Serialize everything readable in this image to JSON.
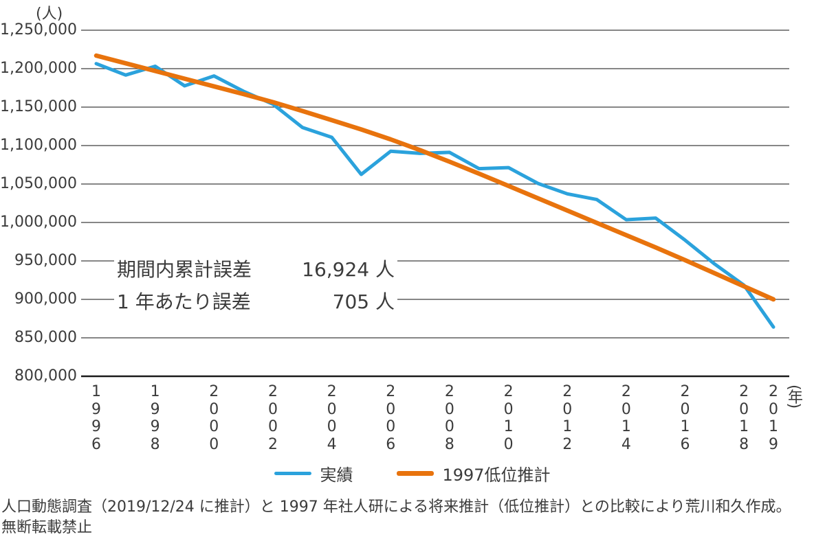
{
  "chart_data": {
    "type": "line",
    "y_unit_label": "(人)",
    "x_unit_label": "(年)",
    "ylim": [
      800000,
      1250000
    ],
    "ytick_step": 50000,
    "ytick_labels": [
      "1,250,000",
      "1,200,000",
      "1,150,000",
      "1,100,000",
      "1,050,000",
      "1,000,000",
      "950,000",
      "900,000",
      "850,000",
      "800,000"
    ],
    "x_tick_labels": [
      "1996",
      "1998",
      "2000",
      "2002",
      "2004",
      "2006",
      "2008",
      "2010",
      "2012",
      "2014",
      "2016",
      "2018",
      "2019"
    ],
    "years": [
      1996,
      1997,
      1998,
      1999,
      2000,
      2001,
      2002,
      2003,
      2004,
      2005,
      2006,
      2007,
      2008,
      2009,
      2010,
      2011,
      2012,
      2013,
      2014,
      2015,
      2016,
      2017,
      2018,
      2019
    ],
    "grid": true,
    "legend_position": "bottom",
    "series": [
      {
        "id": "actual-line",
        "name": "実績",
        "color": "#2BA2DC",
        "width": 5,
        "values": [
          1206555,
          1191665,
          1203147,
          1177669,
          1190547,
          1170662,
          1153855,
          1123610,
          1110721,
          1062530,
          1092674,
          1089818,
          1091156,
          1070035,
          1071304,
          1050806,
          1037231,
          1029816,
          1003539,
          1005677,
          976978,
          946065,
          918397,
          864000
        ]
      },
      {
        "id": "projection-line",
        "name": "1997低位推計",
        "color": "#E8730D",
        "width": 6.5,
        "values": [
          1217000,
          1207000,
          1197000,
          1187000,
          1177000,
          1167000,
          1156500,
          1145000,
          1133000,
          1121000,
          1108000,
          1094000,
          1079000,
          1063500,
          1047500,
          1031500,
          1015500,
          999500,
          983500,
          967500,
          951000,
          934000,
          917000,
          900000
        ]
      }
    ],
    "annotation": {
      "row1_label": "期間内累計誤差",
      "row1_value": "16,924 人",
      "row2_label": "1 年あたり誤差",
      "row2_value": "705 人"
    }
  },
  "footer": {
    "line1": "人口動態調査（2019/12/24 に推計）と 1997 年社人研による将来推計（低位推計）との比較により荒川和久作成。",
    "line2": "無断転載禁止"
  }
}
